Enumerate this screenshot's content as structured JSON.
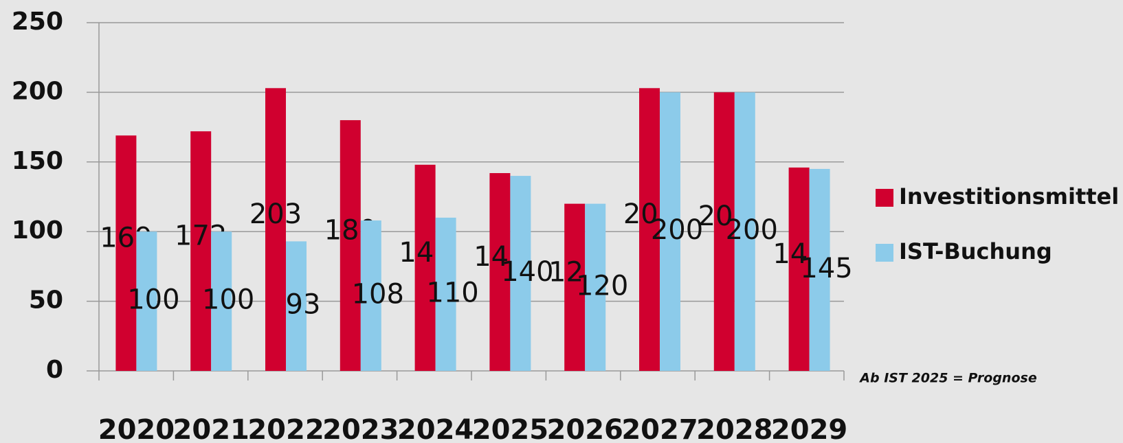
{
  "chart_data": {
    "type": "bar",
    "categories": [
      "2020",
      "2021",
      "2022",
      "2023",
      "2024",
      "2025",
      "2026",
      "2027",
      "2028",
      "2029"
    ],
    "series": [
      {
        "name": "Investitionsmittel",
        "color": "#d0002f",
        "values": [
          169,
          172,
          203,
          180,
          148,
          142,
          120,
          203,
          200,
          146
        ]
      },
      {
        "name": "IST-Buchung",
        "color": "#8ccbea",
        "values": [
          100,
          100,
          93,
          108,
          110,
          140,
          120,
          200,
          200,
          145
        ]
      }
    ],
    "ylim": [
      0,
      250
    ],
    "yticks": [
      0,
      50,
      100,
      150,
      200,
      250
    ],
    "grid": true,
    "annotation": "Ab IST 2025 = Prognose"
  }
}
